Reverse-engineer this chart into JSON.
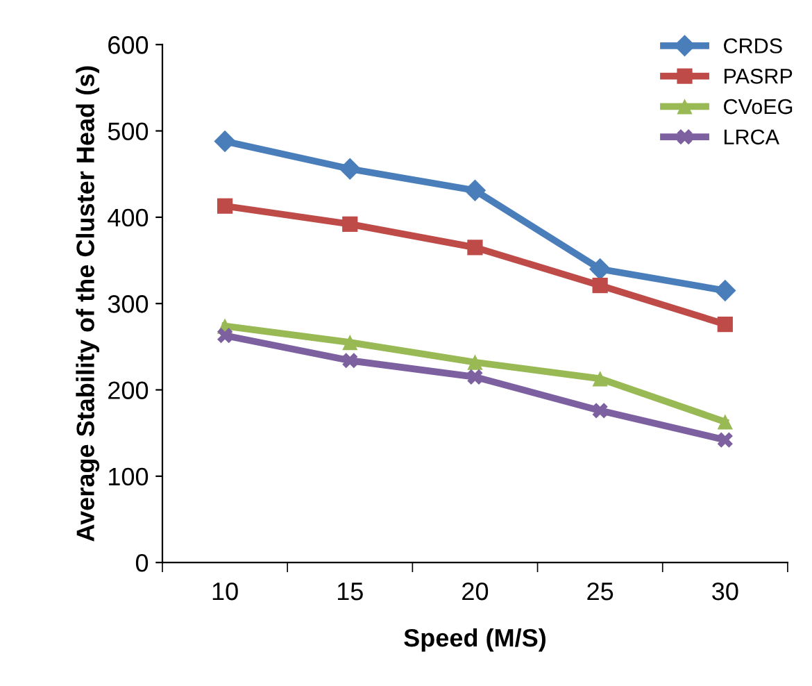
{
  "chart_data": {
    "type": "line",
    "xlabel": "Speed (M/S)",
    "ylabel": "Average Stability of the Cluster Head (s)",
    "categories": [
      "10",
      "15",
      "20",
      "25",
      "30"
    ],
    "series": [
      {
        "name": "CRDS",
        "color": "#4a7ebb",
        "marker": "diamond",
        "values": [
          488,
          456,
          431,
          340,
          315
        ]
      },
      {
        "name": "PASRP",
        "color": "#be4b48",
        "marker": "square",
        "values": [
          413,
          392,
          365,
          321,
          276
        ]
      },
      {
        "name": "CVoEG",
        "color": "#98b954",
        "marker": "triangle",
        "values": [
          274,
          255,
          232,
          213,
          163
        ]
      },
      {
        "name": "LRCA",
        "color": "#7d60a0",
        "marker": "cross",
        "values": [
          263,
          234,
          215,
          176,
          142
        ]
      }
    ],
    "ylim": [
      0,
      600
    ],
    "yticks": [
      0,
      100,
      200,
      300,
      400,
      500,
      600
    ],
    "grid": false,
    "legend": "top right",
    "line_style": "solid"
  }
}
